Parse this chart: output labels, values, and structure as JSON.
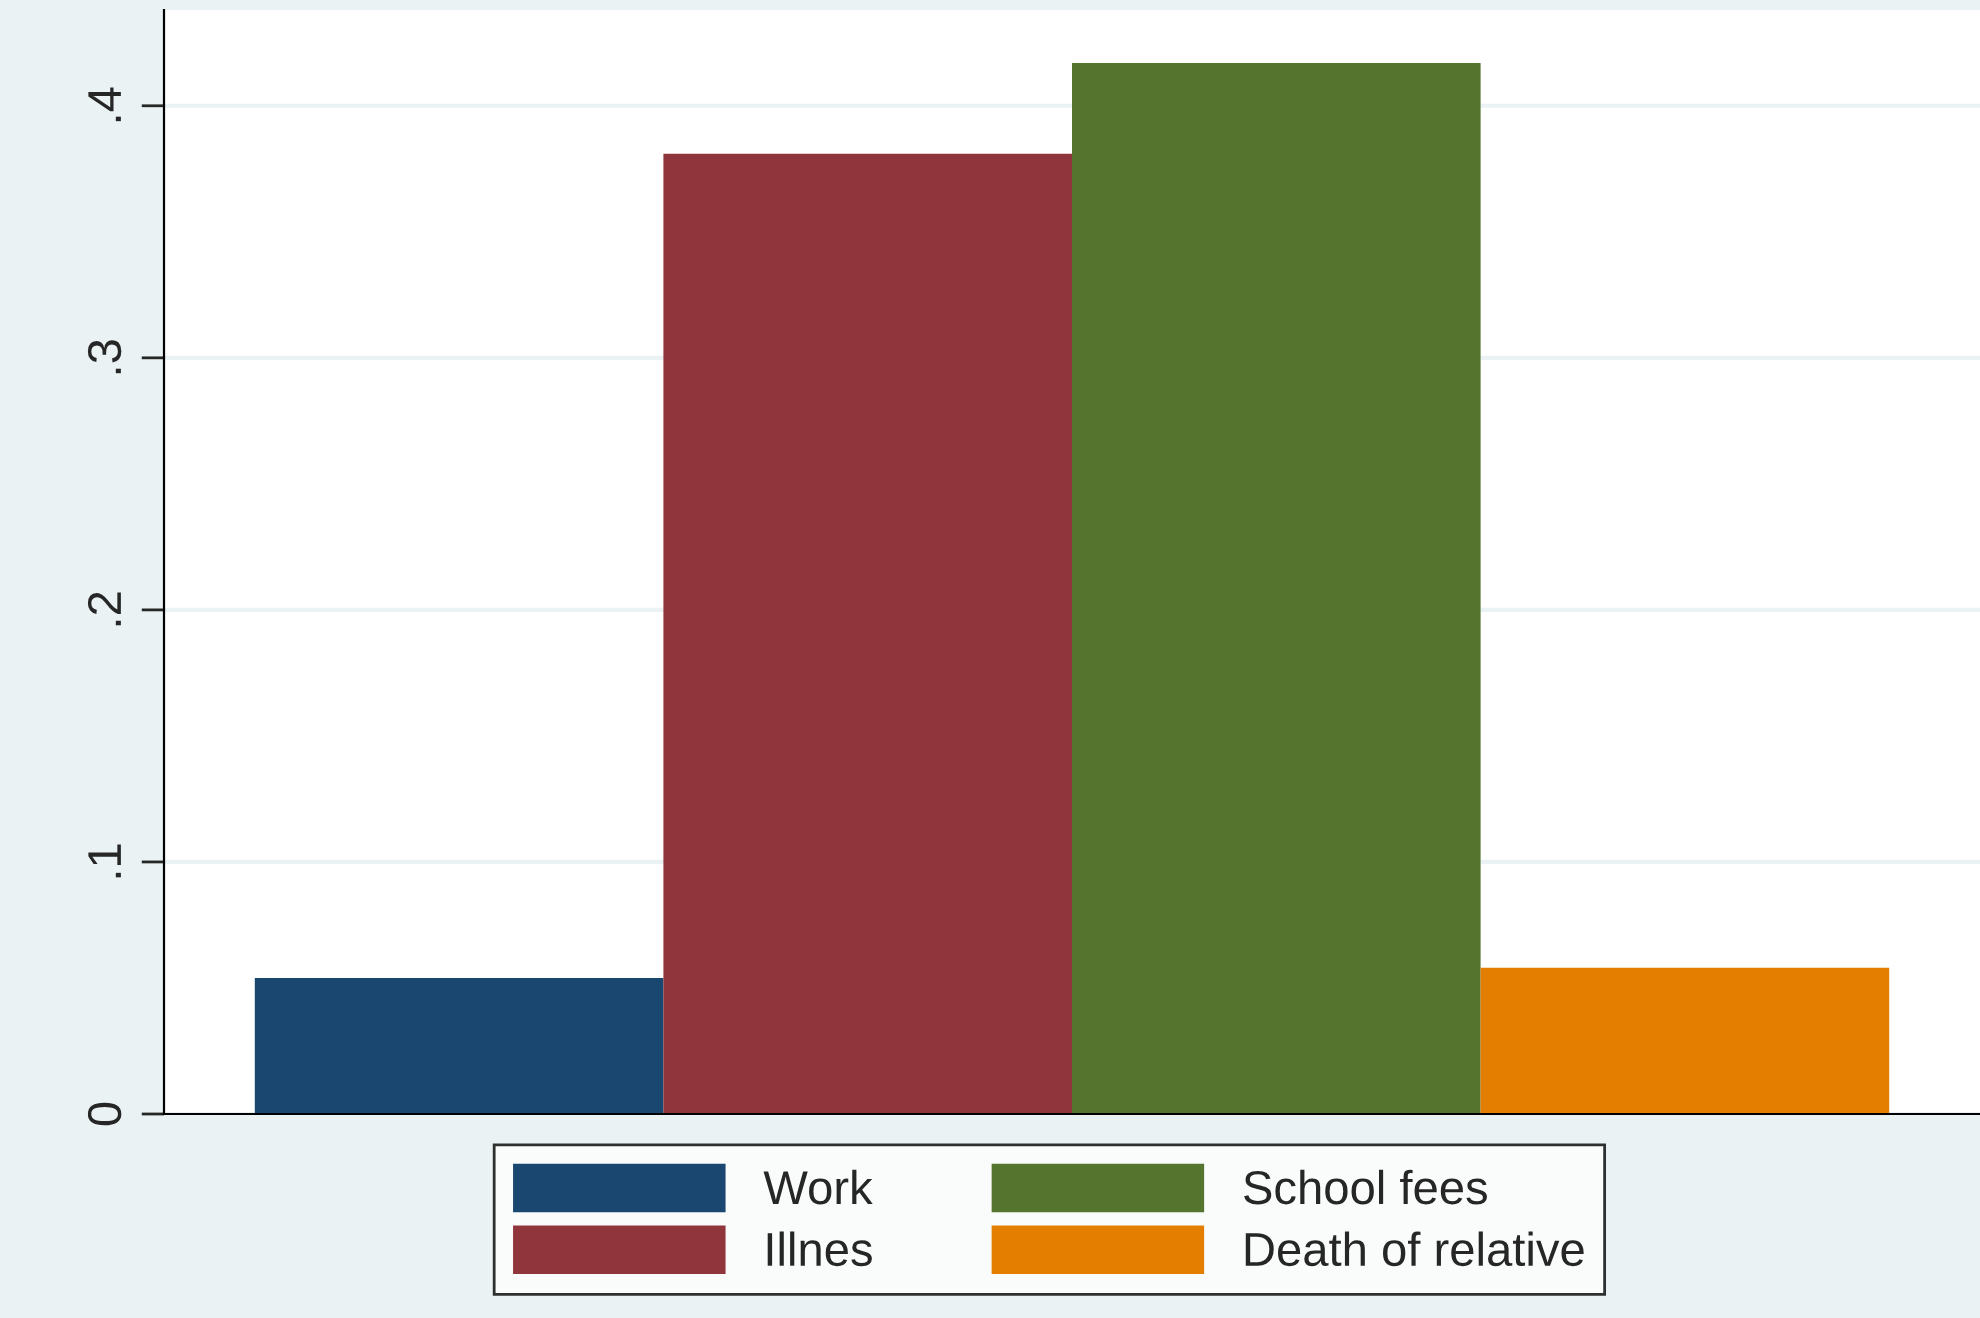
{
  "chart_data": {
    "type": "bar",
    "categories": [
      null
    ],
    "series": [
      {
        "name": "Work",
        "color": "#1a476f",
        "values": [
          0.054
        ]
      },
      {
        "name": "Illnes",
        "color": "#90353b",
        "values": [
          0.381
        ]
      },
      {
        "name": "School fees",
        "color": "#55752f",
        "values": [
          0.417
        ]
      },
      {
        "name": "Death of relative",
        "color": "#e37e00",
        "values": [
          0.058
        ]
      }
    ],
    "ylim": [
      0,
      0.438
    ],
    "yticks": [
      {
        "value": 0,
        "label": "0"
      },
      {
        "value": 0.1,
        "label": ".1"
      },
      {
        "value": 0.2,
        "label": ".2"
      },
      {
        "value": 0.3,
        "label": ".3"
      },
      {
        "value": 0.4,
        "label": ".4"
      }
    ],
    "grid": "y",
    "legend": "bottom"
  }
}
